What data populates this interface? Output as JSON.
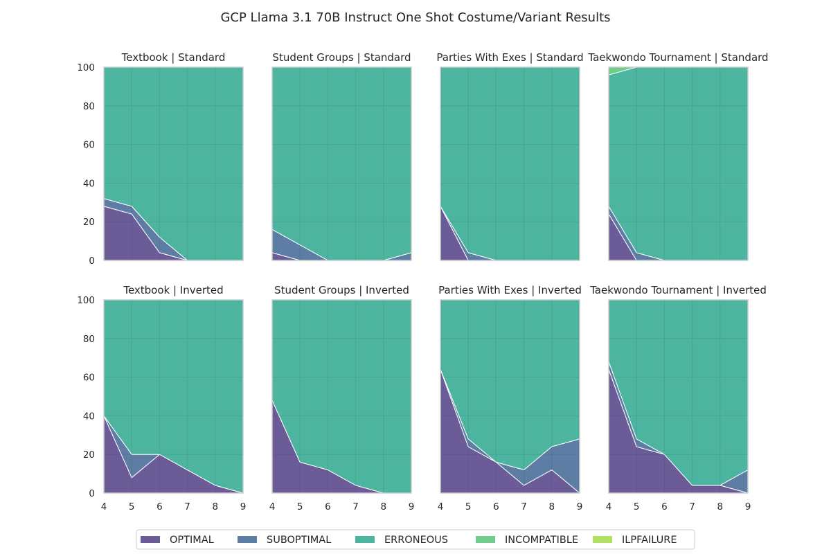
{
  "figure": {
    "title": "GCP Llama 3.1 70B Instruct One Shot Costume/Variant Results"
  },
  "legend": {
    "position": "bottom-center",
    "items": [
      {
        "label": "OPTIMAL",
        "color": "#46337e"
      },
      {
        "label": "SUBOPTIMAL",
        "color": "#365c8d"
      },
      {
        "label": "ERRONEOUS",
        "color": "#1fa187"
      },
      {
        "label": "INCOMPATIBLE",
        "color": "#4ac16d"
      },
      {
        "label": "ILPFAILURE",
        "color": "#9fda3a"
      }
    ]
  },
  "chart_data": [
    {
      "type": "area",
      "stacked": true,
      "title": "Textbook | Standard",
      "x": [
        4,
        5,
        6,
        7,
        8,
        9
      ],
      "xlim": [
        4,
        9
      ],
      "ylim": [
        0,
        100
      ],
      "grid": true,
      "series": [
        {
          "name": "OPTIMAL",
          "values": [
            28,
            24,
            4,
            0,
            0,
            0
          ]
        },
        {
          "name": "SUBOPTIMAL",
          "values": [
            4,
            4,
            8,
            0,
            0,
            0
          ]
        },
        {
          "name": "ERRONEOUS",
          "values": [
            68,
            72,
            88,
            100,
            100,
            100
          ]
        },
        {
          "name": "INCOMPATIBLE",
          "values": [
            0,
            0,
            0,
            0,
            0,
            0
          ]
        },
        {
          "name": "ILPFAILURE",
          "values": [
            0,
            0,
            0,
            0,
            0,
            0
          ]
        }
      ]
    },
    {
      "type": "area",
      "stacked": true,
      "title": "Student Groups | Standard",
      "x": [
        4,
        5,
        6,
        7,
        8,
        9
      ],
      "xlim": [
        4,
        9
      ],
      "ylim": [
        0,
        100
      ],
      "grid": true,
      "series": [
        {
          "name": "OPTIMAL",
          "values": [
            4,
            0,
            0,
            0,
            0,
            0
          ]
        },
        {
          "name": "SUBOPTIMAL",
          "values": [
            12,
            8,
            0,
            0,
            0,
            4
          ]
        },
        {
          "name": "ERRONEOUS",
          "values": [
            84,
            92,
            100,
            100,
            100,
            96
          ]
        },
        {
          "name": "INCOMPATIBLE",
          "values": [
            0,
            0,
            0,
            0,
            0,
            0
          ]
        },
        {
          "name": "ILPFAILURE",
          "values": [
            0,
            0,
            0,
            0,
            0,
            0
          ]
        }
      ]
    },
    {
      "type": "area",
      "stacked": true,
      "title": "Parties With Exes | Standard",
      "x": [
        4,
        5,
        6,
        7,
        8,
        9
      ],
      "xlim": [
        4,
        9
      ],
      "ylim": [
        0,
        100
      ],
      "grid": true,
      "series": [
        {
          "name": "OPTIMAL",
          "values": [
            28,
            0,
            0,
            0,
            0,
            0
          ]
        },
        {
          "name": "SUBOPTIMAL",
          "values": [
            0,
            4,
            0,
            0,
            0,
            0
          ]
        },
        {
          "name": "ERRONEOUS",
          "values": [
            72,
            96,
            100,
            100,
            100,
            100
          ]
        },
        {
          "name": "INCOMPATIBLE",
          "values": [
            0,
            0,
            0,
            0,
            0,
            0
          ]
        },
        {
          "name": "ILPFAILURE",
          "values": [
            0,
            0,
            0,
            0,
            0,
            0
          ]
        }
      ]
    },
    {
      "type": "area",
      "stacked": true,
      "title": "Taekwondo Tournament | Standard",
      "x": [
        4,
        5,
        6,
        7,
        8,
        9
      ],
      "xlim": [
        4,
        9
      ],
      "ylim": [
        0,
        100
      ],
      "grid": true,
      "series": [
        {
          "name": "OPTIMAL",
          "values": [
            24,
            0,
            0,
            0,
            0,
            0
          ]
        },
        {
          "name": "SUBOPTIMAL",
          "values": [
            4,
            4,
            0,
            0,
            0,
            0
          ]
        },
        {
          "name": "ERRONEOUS",
          "values": [
            68,
            96,
            100,
            100,
            100,
            100
          ]
        },
        {
          "name": "INCOMPATIBLE",
          "values": [
            4,
            0,
            0,
            0,
            0,
            0
          ]
        },
        {
          "name": "ILPFAILURE",
          "values": [
            0,
            0,
            0,
            0,
            0,
            0
          ]
        }
      ]
    },
    {
      "type": "area",
      "stacked": true,
      "title": "Textbook | Inverted",
      "x": [
        4,
        5,
        6,
        7,
        8,
        9
      ],
      "xlim": [
        4,
        9
      ],
      "ylim": [
        0,
        100
      ],
      "grid": true,
      "series": [
        {
          "name": "OPTIMAL",
          "values": [
            40,
            8,
            20,
            12,
            4,
            0
          ]
        },
        {
          "name": "SUBOPTIMAL",
          "values": [
            0,
            12,
            0,
            0,
            0,
            0
          ]
        },
        {
          "name": "ERRONEOUS",
          "values": [
            60,
            80,
            80,
            88,
            96,
            100
          ]
        },
        {
          "name": "INCOMPATIBLE",
          "values": [
            0,
            0,
            0,
            0,
            0,
            0
          ]
        },
        {
          "name": "ILPFAILURE",
          "values": [
            0,
            0,
            0,
            0,
            0,
            0
          ]
        }
      ]
    },
    {
      "type": "area",
      "stacked": true,
      "title": "Student Groups | Inverted",
      "x": [
        4,
        5,
        6,
        7,
        8,
        9
      ],
      "xlim": [
        4,
        9
      ],
      "ylim": [
        0,
        100
      ],
      "grid": true,
      "series": [
        {
          "name": "OPTIMAL",
          "values": [
            48,
            16,
            12,
            4,
            0,
            0
          ]
        },
        {
          "name": "SUBOPTIMAL",
          "values": [
            0,
            0,
            0,
            0,
            0,
            0
          ]
        },
        {
          "name": "ERRONEOUS",
          "values": [
            52,
            84,
            88,
            96,
            100,
            100
          ]
        },
        {
          "name": "INCOMPATIBLE",
          "values": [
            0,
            0,
            0,
            0,
            0,
            0
          ]
        },
        {
          "name": "ILPFAILURE",
          "values": [
            0,
            0,
            0,
            0,
            0,
            0
          ]
        }
      ]
    },
    {
      "type": "area",
      "stacked": true,
      "title": "Parties With Exes | Inverted",
      "x": [
        4,
        5,
        6,
        7,
        8,
        9
      ],
      "xlim": [
        4,
        9
      ],
      "ylim": [
        0,
        100
      ],
      "grid": true,
      "series": [
        {
          "name": "OPTIMAL",
          "values": [
            64,
            24,
            16,
            4,
            12,
            0
          ]
        },
        {
          "name": "SUBOPTIMAL",
          "values": [
            0,
            4,
            0,
            8,
            12,
            28
          ]
        },
        {
          "name": "ERRONEOUS",
          "values": [
            36,
            72,
            84,
            88,
            76,
            72
          ]
        },
        {
          "name": "INCOMPATIBLE",
          "values": [
            0,
            0,
            0,
            0,
            0,
            0
          ]
        },
        {
          "name": "ILPFAILURE",
          "values": [
            0,
            0,
            0,
            0,
            0,
            0
          ]
        }
      ]
    },
    {
      "type": "area",
      "stacked": true,
      "title": "Taekwondo Tournament | Inverted",
      "x": [
        4,
        5,
        6,
        7,
        8,
        9
      ],
      "xlim": [
        4,
        9
      ],
      "ylim": [
        0,
        100
      ],
      "grid": true,
      "series": [
        {
          "name": "OPTIMAL",
          "values": [
            64,
            24,
            20,
            4,
            4,
            0
          ]
        },
        {
          "name": "SUBOPTIMAL",
          "values": [
            4,
            4,
            0,
            0,
            0,
            12
          ]
        },
        {
          "name": "ERRONEOUS",
          "values": [
            32,
            72,
            80,
            96,
            96,
            88
          ]
        },
        {
          "name": "INCOMPATIBLE",
          "values": [
            0,
            0,
            0,
            0,
            0,
            0
          ]
        },
        {
          "name": "ILPFAILURE",
          "values": [
            0,
            0,
            0,
            0,
            0,
            0
          ]
        }
      ]
    }
  ]
}
